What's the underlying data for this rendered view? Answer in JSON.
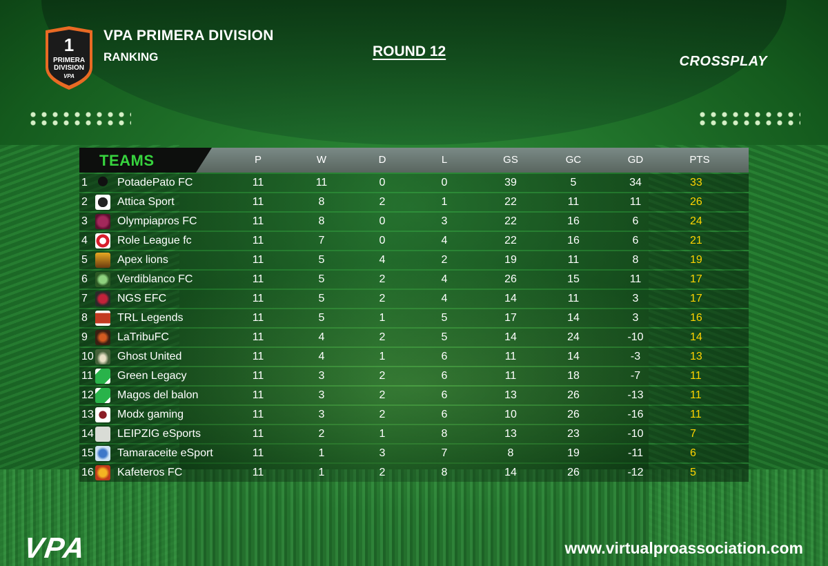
{
  "header": {
    "badge_number": "1",
    "badge_text_line1": "PRIMERA",
    "badge_text_line2": "DIVISION",
    "badge_brand": "VPA",
    "title": "VPA PRIMERA DIVISION",
    "subtitle": "RANKING",
    "round": "ROUND 12",
    "platform": "CROSSPLAY"
  },
  "colors": {
    "accent_green": "#37d33e",
    "points_yellow": "#ffd400",
    "header_bar": "#6f7d77"
  },
  "table": {
    "teams_label": "TEAMS",
    "columns": [
      "P",
      "W",
      "D",
      "L",
      "GS",
      "GC",
      "GD",
      "PTS"
    ],
    "rows": [
      {
        "pos": "1",
        "team": "PotadePato FC",
        "logo": "potadepato-logo",
        "P": "11",
        "W": "11",
        "D": "0",
        "L": "0",
        "GS": "39",
        "GC": "5",
        "GD": "34",
        "PTS": "33"
      },
      {
        "pos": "2",
        "team": "Attica Sport",
        "logo": "attica-logo",
        "P": "11",
        "W": "8",
        "D": "2",
        "L": "1",
        "GS": "22",
        "GC": "11",
        "GD": "11",
        "PTS": "26"
      },
      {
        "pos": "3",
        "team": "Olympiapros FC",
        "logo": "olympiapros-logo",
        "P": "11",
        "W": "8",
        "D": "0",
        "L": "3",
        "GS": "22",
        "GC": "16",
        "GD": "6",
        "PTS": "24"
      },
      {
        "pos": "4",
        "team": "Role League fc",
        "logo": "role-league-logo",
        "P": "11",
        "W": "7",
        "D": "0",
        "L": "4",
        "GS": "22",
        "GC": "16",
        "GD": "6",
        "PTS": "21"
      },
      {
        "pos": "5",
        "team": "Apex lions",
        "logo": "apex-lions-logo",
        "P": "11",
        "W": "5",
        "D": "4",
        "L": "2",
        "GS": "19",
        "GC": "11",
        "GD": "8",
        "PTS": "19"
      },
      {
        "pos": "6",
        "team": "Verdiblanco FC",
        "logo": "verdiblanco-logo",
        "P": "11",
        "W": "5",
        "D": "2",
        "L": "4",
        "GS": "26",
        "GC": "15",
        "GD": "11",
        "PTS": "17"
      },
      {
        "pos": "7",
        "team": "NGS EFC",
        "logo": "ngs-logo",
        "P": "11",
        "W": "5",
        "D": "2",
        "L": "4",
        "GS": "14",
        "GC": "11",
        "GD": "3",
        "PTS": "17"
      },
      {
        "pos": "8",
        "team": "TRL Legends",
        "logo": "trl-logo",
        "P": "11",
        "W": "5",
        "D": "1",
        "L": "5",
        "GS": "17",
        "GC": "14",
        "GD": "3",
        "PTS": "16"
      },
      {
        "pos": "9",
        "team": "LaTribuFC",
        "logo": "latribu-logo",
        "P": "11",
        "W": "4",
        "D": "2",
        "L": "5",
        "GS": "14",
        "GC": "24",
        "GD": "-10",
        "PTS": "14"
      },
      {
        "pos": "10",
        "team": "Ghost United",
        "logo": "ghost-united-logo",
        "P": "11",
        "W": "4",
        "D": "1",
        "L": "6",
        "GS": "11",
        "GC": "14",
        "GD": "-3",
        "PTS": "13"
      },
      {
        "pos": "11",
        "team": "Green Legacy",
        "logo": "green-legacy-logo",
        "P": "11",
        "W": "3",
        "D": "2",
        "L": "6",
        "GS": "11",
        "GC": "18",
        "GD": "-7",
        "PTS": "11"
      },
      {
        "pos": "12",
        "team": "Magos del balon",
        "logo": "magos-logo",
        "P": "11",
        "W": "3",
        "D": "2",
        "L": "6",
        "GS": "13",
        "GC": "26",
        "GD": "-13",
        "PTS": "11"
      },
      {
        "pos": "13",
        "team": "Modx gaming",
        "logo": "modx-logo",
        "P": "11",
        "W": "3",
        "D": "2",
        "L": "6",
        "GS": "10",
        "GC": "26",
        "GD": "-16",
        "PTS": "11"
      },
      {
        "pos": "14",
        "team": "LEIPZIG eSports",
        "logo": "leipzig-logo",
        "P": "11",
        "W": "2",
        "D": "1",
        "L": "8",
        "GS": "13",
        "GC": "23",
        "GD": "-10",
        "PTS": "7"
      },
      {
        "pos": "15",
        "team": "Tamaraceite eSport",
        "logo": "tamaraceite-logo",
        "P": "11",
        "W": "1",
        "D": "3",
        "L": "7",
        "GS": "8",
        "GC": "19",
        "GD": "-11",
        "PTS": "6"
      },
      {
        "pos": "16",
        "team": "Kafeteros FC",
        "logo": "kafeteros-logo",
        "P": "11",
        "W": "1",
        "D": "2",
        "L": "8",
        "GS": "14",
        "GC": "26",
        "GD": "-12",
        "PTS": "5"
      }
    ]
  },
  "footer": {
    "logo_text": "VPA",
    "website": "www.virtualproassociation.com"
  }
}
